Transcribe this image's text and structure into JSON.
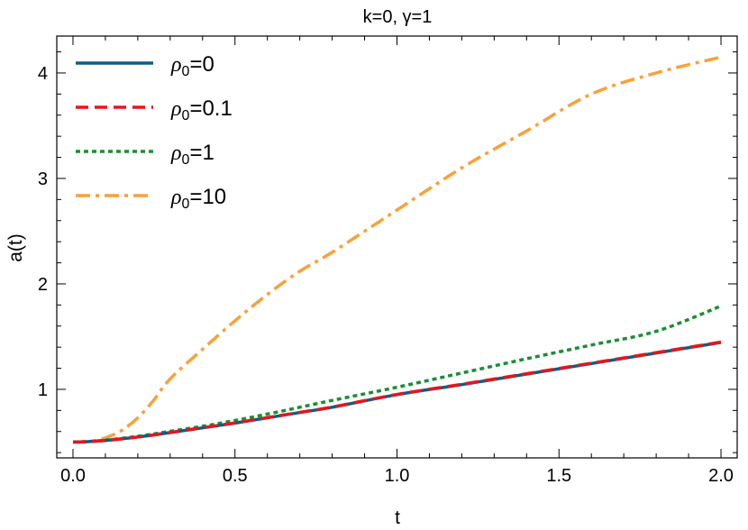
{
  "chart_data": {
    "type": "line",
    "title": "k=0, γ=1",
    "xlabel": "t",
    "ylabel": "a(t)",
    "xlim": [
      -0.05,
      2.05
    ],
    "ylim": [
      0.35,
      4.35
    ],
    "xticks": [
      0.0,
      0.5,
      1.0,
      1.5,
      2.0
    ],
    "xtick_labels": [
      "0.0",
      "0.5",
      "1.0",
      "1.5",
      "2.0"
    ],
    "yticks": [
      1,
      2,
      3,
      4
    ],
    "ytick_labels": [
      "1",
      "2",
      "3",
      "4"
    ],
    "grid": false,
    "legend_position": "top-left",
    "x": [
      0.0,
      0.05,
      0.1,
      0.15,
      0.2,
      0.25,
      0.3,
      0.4,
      0.5,
      0.6,
      0.7,
      0.8,
      1.0,
      1.2,
      1.4,
      1.6,
      1.8,
      2.0
    ],
    "series": [
      {
        "name": "ρ0=0",
        "label_symbol": "ρ",
        "label_sub": "0",
        "label_tail": "=0",
        "color": "#0b5e86",
        "dash": "",
        "width": 3.5,
        "values": [
          0.5,
          0.505,
          0.515,
          0.53,
          0.548,
          0.568,
          0.59,
          0.635,
          0.68,
          0.73,
          0.78,
          0.83,
          0.95,
          1.045,
          1.145,
          1.245,
          1.345,
          1.445
        ]
      },
      {
        "name": "ρ0=0.1",
        "label_symbol": "ρ",
        "label_sub": "0",
        "label_tail": "=0.1",
        "color": "#e8151c",
        "dash": "14,7",
        "width": 3.5,
        "values": [
          0.5,
          0.505,
          0.515,
          0.53,
          0.548,
          0.568,
          0.59,
          0.636,
          0.682,
          0.732,
          0.782,
          0.832,
          0.952,
          1.048,
          1.148,
          1.248,
          1.348,
          1.448
        ]
      },
      {
        "name": "ρ0=1",
        "label_symbol": "ρ",
        "label_sub": "0",
        "label_tail": "=1",
        "color": "#1c8e33",
        "dash": "5,4",
        "width": 3.5,
        "values": [
          0.5,
          0.506,
          0.518,
          0.535,
          0.555,
          0.578,
          0.602,
          0.65,
          0.705,
          0.765,
          0.83,
          0.895,
          1.02,
          1.155,
          1.29,
          1.42,
          1.55,
          1.79
        ]
      },
      {
        "name": "ρ0=10",
        "label_symbol": "ρ",
        "label_sub": "0",
        "label_tail": "=10",
        "color": "#f9a13a",
        "dash": "16,6,4,6",
        "width": 3.5,
        "values": [
          0.5,
          0.505,
          0.54,
          0.61,
          0.73,
          0.9,
          1.1,
          1.38,
          1.65,
          1.9,
          2.12,
          2.3,
          2.7,
          3.1,
          3.45,
          3.8,
          4.0,
          4.15
        ]
      }
    ]
  }
}
